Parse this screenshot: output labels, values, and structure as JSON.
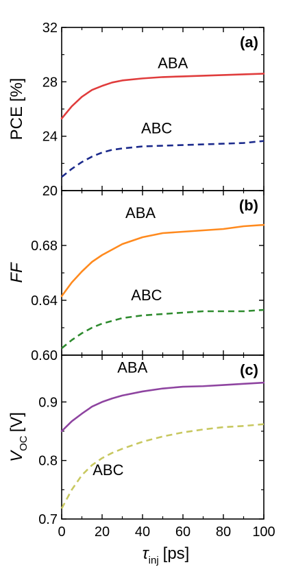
{
  "chart_data": [
    {
      "type": "line",
      "panel": "(a)",
      "ylabel": "PCE [%]",
      "ylim": [
        20,
        32
      ],
      "yticks": [
        "20",
        "24",
        "28",
        "32"
      ],
      "xlim": [
        0,
        100
      ],
      "xticks": [
        "0",
        "20",
        "40",
        "60",
        "80",
        "100"
      ],
      "grid": false,
      "series": [
        {
          "name": "ABA",
          "color": "#e03c3c",
          "dash": "solid",
          "x": [
            0,
            5,
            10,
            15,
            20,
            25,
            30,
            40,
            50,
            60,
            70,
            80,
            90,
            100
          ],
          "y": [
            25.3,
            26.2,
            26.9,
            27.4,
            27.7,
            27.95,
            28.1,
            28.25,
            28.35,
            28.4,
            28.45,
            28.5,
            28.55,
            28.6
          ]
        },
        {
          "name": "ABC",
          "color": "#1b2a8c",
          "dash": "dashed",
          "x": [
            0,
            5,
            10,
            15,
            20,
            25,
            30,
            40,
            50,
            60,
            70,
            80,
            90,
            100
          ],
          "y": [
            21.0,
            21.6,
            22.1,
            22.5,
            22.8,
            23.0,
            23.1,
            23.25,
            23.3,
            23.35,
            23.4,
            23.45,
            23.5,
            23.65
          ]
        }
      ],
      "annotations": [
        {
          "text": "ABA",
          "x": 55,
          "y": 29.0
        },
        {
          "text": "ABC",
          "x": 47,
          "y": 24.2
        }
      ]
    },
    {
      "type": "line",
      "panel": "(b)",
      "ylabel": "FF",
      "ylim": [
        0.6,
        0.72
      ],
      "yticks": [
        "0.60",
        "0.64",
        "0.68"
      ],
      "xlim": [
        0,
        100
      ],
      "xticks": [
        "0",
        "20",
        "40",
        "60",
        "80",
        "100"
      ],
      "grid": false,
      "series": [
        {
          "name": "ABA",
          "color": "#ff8a1e",
          "dash": "solid",
          "x": [
            0,
            5,
            10,
            15,
            20,
            25,
            30,
            40,
            50,
            60,
            70,
            80,
            90,
            100
          ],
          "y": [
            0.643,
            0.653,
            0.661,
            0.668,
            0.673,
            0.677,
            0.681,
            0.686,
            0.689,
            0.69,
            0.691,
            0.692,
            0.694,
            0.695
          ]
        },
        {
          "name": "ABC",
          "color": "#2e8b2e",
          "dash": "dashed",
          "x": [
            0,
            5,
            10,
            15,
            20,
            25,
            30,
            40,
            50,
            60,
            70,
            80,
            90,
            100
          ],
          "y": [
            0.605,
            0.611,
            0.616,
            0.62,
            0.623,
            0.625,
            0.627,
            0.629,
            0.63,
            0.631,
            0.632,
            0.632,
            0.632,
            0.633
          ]
        }
      ],
      "annotations": [
        {
          "text": "ABA",
          "x": 39,
          "y": 0.7
        },
        {
          "text": "ABC",
          "x": 42,
          "y": 0.64
        }
      ]
    },
    {
      "type": "line",
      "panel": "(c)",
      "ylabel": "V_OC [V]",
      "ylim": [
        0.7,
        0.98
      ],
      "yticks": [
        "0.7",
        "0.8",
        "0.9"
      ],
      "xlim": [
        0,
        100
      ],
      "xticks": [
        "0",
        "20",
        "40",
        "60",
        "80",
        "100"
      ],
      "grid": false,
      "series": [
        {
          "name": "ABA",
          "color": "#8e44a0",
          "dash": "solid",
          "x": [
            0,
            5,
            10,
            15,
            20,
            25,
            30,
            40,
            50,
            60,
            70,
            80,
            90,
            100
          ],
          "y": [
            0.85,
            0.867,
            0.88,
            0.892,
            0.9,
            0.906,
            0.911,
            0.918,
            0.923,
            0.926,
            0.927,
            0.929,
            0.931,
            0.933
          ]
        },
        {
          "name": "ABC",
          "color": "#c8c860",
          "dash": "dashed",
          "x": [
            0,
            5,
            10,
            15,
            20,
            25,
            30,
            40,
            50,
            60,
            70,
            80,
            90,
            100
          ],
          "y": [
            0.718,
            0.75,
            0.775,
            0.792,
            0.804,
            0.813,
            0.82,
            0.832,
            0.841,
            0.848,
            0.853,
            0.857,
            0.859,
            0.862
          ]
        }
      ],
      "annotations": [
        {
          "text": "ABA",
          "x": 35,
          "y": 0.95
        },
        {
          "text": "ABC",
          "x": 23,
          "y": 0.775
        }
      ]
    }
  ],
  "shared": {
    "xlabel_symbol": "τ",
    "xlabel_subscript": "inj",
    "xlabel_unit": "[ps]"
  }
}
